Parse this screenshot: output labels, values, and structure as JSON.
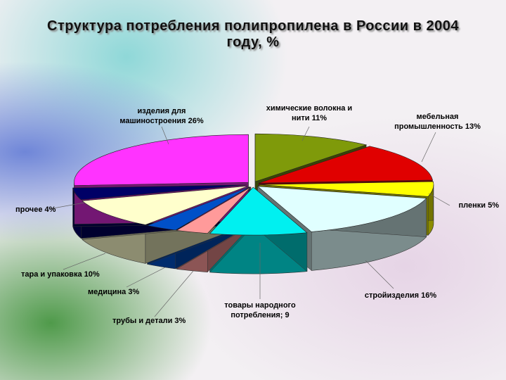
{
  "chart_data": {
    "type": "pie3d",
    "title": "Структура потребления полипропилена в России в 2004 году, %",
    "categories": [
      "химические волокна и нити",
      "мебельная промышленность",
      "пленки",
      "стройизделия",
      "товары народного потребления;",
      "трубы и детали",
      "медицина",
      "тара и упаковка",
      "прочее",
      "изделия для машиностроения"
    ],
    "values": [
      11,
      13,
      5,
      16,
      9,
      3,
      3,
      10,
      4,
      26
    ],
    "value_labels": [
      "11%",
      "13%",
      "5%",
      "16%",
      "9",
      "3%",
      "3%",
      "10%",
      "4%",
      "26%"
    ],
    "colors": [
      "#7f9a0a",
      "#e00000",
      "#ffff00",
      "#e0ffff",
      "#00f0f0",
      "#ff9a9a",
      "#0050c8",
      "#ffffcc",
      "#000066",
      "#ff33ff"
    ]
  }
}
